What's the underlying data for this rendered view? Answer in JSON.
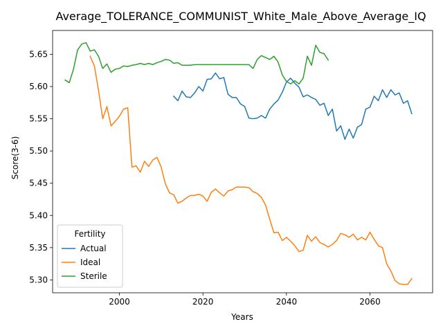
{
  "chart_data": {
    "type": "line",
    "title": "Average_TOLERANCE_COMMUNIST_White_Male_Above_Average_IQ",
    "xlabel": "Years",
    "ylabel": "Score(3-6)",
    "xlim": [
      1984,
      2075
    ],
    "ylim": [
      5.28,
      5.687
    ],
    "x_ticks": [
      2000,
      2020,
      2040,
      2060
    ],
    "y_ticks": [
      5.3,
      5.35,
      5.4,
      5.45,
      5.5,
      5.55,
      5.6,
      5.65
    ],
    "grid": false,
    "legend": {
      "title": "Fertility",
      "position": "lower-left"
    },
    "series": [
      {
        "name": "Actual",
        "color": "#1f77b4",
        "x": [
          2013,
          2014,
          2015,
          2016,
          2017,
          2018,
          2019,
          2020,
          2021,
          2022,
          2023,
          2024,
          2025,
          2026,
          2027,
          2028,
          2029,
          2030,
          2031,
          2032,
          2033,
          2034,
          2035,
          2036,
          2037,
          2038,
          2039,
          2040,
          2041,
          2042,
          2043,
          2044,
          2045,
          2046,
          2047,
          2048,
          2049,
          2050,
          2051,
          2052,
          2053,
          2054,
          2055,
          2056,
          2057,
          2058,
          2059,
          2060,
          2061,
          2062,
          2063,
          2064,
          2065,
          2066,
          2067,
          2068,
          2069,
          2070
        ],
        "values": [
          5.585,
          5.578,
          5.593,
          5.584,
          5.583,
          5.59,
          5.6,
          5.593,
          5.611,
          5.612,
          5.621,
          5.612,
          5.614,
          5.588,
          5.583,
          5.583,
          5.573,
          5.569,
          5.551,
          5.55,
          5.551,
          5.555,
          5.551,
          5.565,
          5.573,
          5.579,
          5.591,
          5.607,
          5.613,
          5.605,
          5.599,
          5.584,
          5.587,
          5.583,
          5.58,
          5.571,
          5.574,
          5.555,
          5.565,
          5.531,
          5.539,
          5.518,
          5.534,
          5.52,
          5.537,
          5.541,
          5.565,
          5.568,
          5.585,
          5.578,
          5.595,
          5.583,
          5.595,
          5.587,
          5.59,
          5.574,
          5.578,
          5.558
        ]
      },
      {
        "name": "Ideal",
        "color": "#ff7f0e",
        "x": [
          1993,
          1994,
          1995,
          1996,
          1997,
          1998,
          1999,
          2000,
          2001,
          2002,
          2003,
          2004,
          2005,
          2006,
          2007,
          2008,
          2009,
          2010,
          2011,
          2012,
          2013,
          2014,
          2015,
          2016,
          2017,
          2018,
          2019,
          2020,
          2021,
          2022,
          2023,
          2024,
          2025,
          2026,
          2027,
          2028,
          2029,
          2030,
          2031,
          2032,
          2033,
          2034,
          2035,
          2036,
          2037,
          2038,
          2039,
          2040,
          2041,
          2042,
          2043,
          2044,
          2045,
          2046,
          2047,
          2048,
          2049,
          2050,
          2051,
          2052,
          2053,
          2054,
          2055,
          2056,
          2057,
          2058,
          2059,
          2060,
          2061,
          2062,
          2063,
          2064,
          2065,
          2066,
          2067,
          2068,
          2069,
          2070
        ],
        "values": [
          5.647,
          5.632,
          5.594,
          5.55,
          5.569,
          5.539,
          5.546,
          5.554,
          5.565,
          5.567,
          5.475,
          5.477,
          5.467,
          5.484,
          5.476,
          5.486,
          5.49,
          5.475,
          5.449,
          5.435,
          5.432,
          5.419,
          5.422,
          5.427,
          5.431,
          5.431,
          5.433,
          5.43,
          5.422,
          5.436,
          5.441,
          5.435,
          5.43,
          5.438,
          5.44,
          5.444,
          5.444,
          5.444,
          5.443,
          5.437,
          5.434,
          5.428,
          5.416,
          5.394,
          5.373,
          5.374,
          5.361,
          5.366,
          5.36,
          5.353,
          5.344,
          5.346,
          5.369,
          5.36,
          5.367,
          5.358,
          5.355,
          5.351,
          5.355,
          5.361,
          5.372,
          5.37,
          5.366,
          5.371,
          5.362,
          5.366,
          5.362,
          5.374,
          5.363,
          5.353,
          5.35,
          5.325,
          5.314,
          5.299,
          5.294,
          5.293,
          5.293,
          5.302
        ]
      },
      {
        "name": "Sterile",
        "color": "#2ca02c",
        "x": [
          1987,
          1988,
          1989,
          1990,
          1991,
          1992,
          1993,
          1994,
          1995,
          1996,
          1997,
          1998,
          1999,
          2000,
          2001,
          2002,
          2003,
          2004,
          2005,
          2006,
          2007,
          2008,
          2009,
          2010,
          2011,
          2012,
          2013,
          2014,
          2015,
          2016,
          2017,
          2018,
          2019,
          2020,
          2021,
          2022,
          2023,
          2024,
          2025,
          2026,
          2027,
          2028,
          2029,
          2030,
          2031,
          2032,
          2033,
          2034,
          2035,
          2036,
          2037,
          2038,
          2039,
          2040,
          2041,
          2042,
          2043,
          2044,
          2045,
          2046,
          2047,
          2048,
          2049,
          2050
        ],
        "values": [
          5.61,
          5.606,
          5.627,
          5.657,
          5.666,
          5.668,
          5.655,
          5.657,
          5.647,
          5.628,
          5.635,
          5.622,
          5.627,
          5.628,
          5.632,
          5.631,
          5.633,
          5.634,
          5.636,
          5.634,
          5.636,
          5.634,
          5.637,
          5.639,
          5.642,
          5.641,
          5.636,
          5.637,
          5.633,
          5.633,
          5.633,
          5.634,
          5.634,
          5.634,
          5.634,
          5.634,
          5.634,
          5.634,
          5.634,
          5.634,
          5.634,
          5.634,
          5.634,
          5.634,
          5.634,
          5.628,
          5.642,
          5.648,
          5.645,
          5.642,
          5.647,
          5.638,
          5.618,
          5.608,
          5.604,
          5.609,
          5.604,
          5.613,
          5.647,
          5.633,
          5.664,
          5.653,
          5.651,
          5.641
        ]
      }
    ]
  }
}
